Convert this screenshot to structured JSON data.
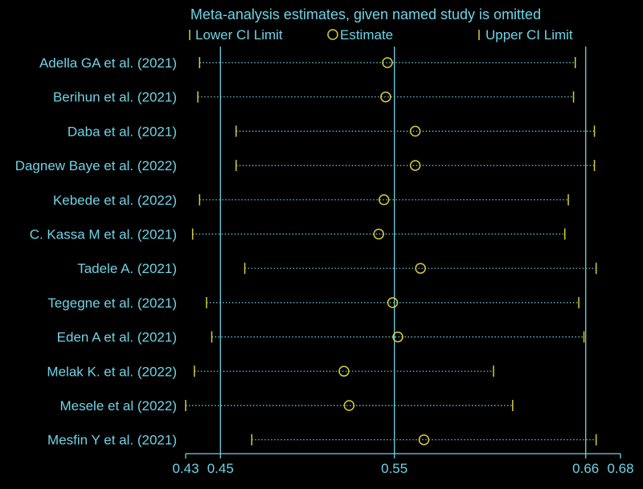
{
  "chart_data": {
    "type": "scatter",
    "title": "Meta-analysis estimates, given named study is omitted",
    "legend": {
      "placement": "top",
      "entries": [
        {
          "key": "lower",
          "label": "Lower CI Limit"
        },
        {
          "key": "estimate",
          "label": "Estimate"
        },
        {
          "key": "upper",
          "label": "Upper CI Limit"
        }
      ]
    },
    "xlabel": "",
    "ylabel": "",
    "xlim": [
      0.43,
      0.68
    ],
    "x_ticks": [
      {
        "value": 0.43,
        "label": "0.43"
      },
      {
        "value": 0.45,
        "label": "0.45"
      },
      {
        "value": 0.55,
        "label": "0.55"
      },
      {
        "value": 0.66,
        "label": "0.66"
      },
      {
        "value": 0.68,
        "label": "0.68"
      }
    ],
    "reference_lines": [
      0.45,
      0.55,
      0.66
    ],
    "studies": [
      {
        "name": "Adella GA et al. (2021)",
        "lower": 0.438,
        "estimate": 0.546,
        "upper": 0.654
      },
      {
        "name": "Berihun et al. (2021)",
        "lower": 0.437,
        "estimate": 0.545,
        "upper": 0.653
      },
      {
        "name": "Daba et al. (2021)",
        "lower": 0.459,
        "estimate": 0.562,
        "upper": 0.665
      },
      {
        "name": "Dagnew Baye et al. (2022)",
        "lower": 0.459,
        "estimate": 0.562,
        "upper": 0.665
      },
      {
        "name": "Kebede et al. (2022)",
        "lower": 0.438,
        "estimate": 0.544,
        "upper": 0.65
      },
      {
        "name": "C. Kassa M et al. (2021)",
        "lower": 0.434,
        "estimate": 0.541,
        "upper": 0.648
      },
      {
        "name": "Tadele A. (2021)",
        "lower": 0.464,
        "estimate": 0.565,
        "upper": 0.666
      },
      {
        "name": "Tegegne et al.  (2021)",
        "lower": 0.442,
        "estimate": 0.549,
        "upper": 0.656
      },
      {
        "name": "Eden A et al. (2021)",
        "lower": 0.445,
        "estimate": 0.552,
        "upper": 0.659
      },
      {
        "name": "Melak K. et al. (2022)",
        "lower": 0.435,
        "estimate": 0.521,
        "upper": 0.607
      },
      {
        "name": "Mesele et al (2022)",
        "lower": 0.43,
        "estimate": 0.524,
        "upper": 0.618
      },
      {
        "name": "Mesfin Y et al. (2021)",
        "lower": 0.468,
        "estimate": 0.567,
        "upper": 0.666
      }
    ],
    "colors": {
      "background": "#000000",
      "text": "#6fd3e6",
      "axis": "#6fd3e6",
      "reference": "#6fd3e6",
      "ci_line": "#6fd3e6",
      "markers": "#d8cc3c"
    },
    "grid": false
  }
}
